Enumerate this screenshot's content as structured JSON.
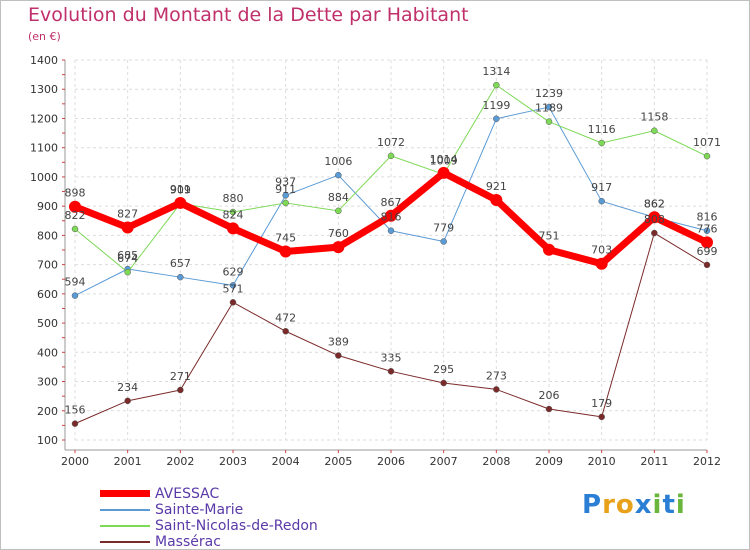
{
  "header": {
    "title": "Evolution du Montant de la Dette par Habitant",
    "unit": "(en €)"
  },
  "logo": {
    "text": "Proxiti",
    "letters": [
      "P",
      "r",
      "o",
      "x",
      "i",
      "t",
      "i"
    ],
    "colors": [
      "#2a7fd4",
      "#e8a11a",
      "#e8a11a",
      "#2a7fd4",
      "#6ab53c",
      "#2a7fd4",
      "#6ab53c"
    ]
  },
  "chart_data": {
    "type": "line",
    "title": "Evolution du Montant de la Dette par Habitant",
    "ylabel": "(en €)",
    "xlabel": "",
    "ylim": [
      100,
      1400
    ],
    "yticks": [
      "100",
      "200",
      "300",
      "400",
      "500",
      "600",
      "700",
      "800",
      "900",
      "1000",
      "1100",
      "1200",
      "1300",
      "1400"
    ],
    "x": [
      "2000",
      "2001",
      "2002",
      "2003",
      "2004",
      "2005",
      "2006",
      "2007",
      "2008",
      "2009",
      "2010",
      "2011",
      "2012"
    ],
    "grid": true,
    "legend_position": "bottom-left",
    "series": [
      {
        "name": "AVESSAC",
        "color": "#ff0000",
        "width": 7,
        "values": [
          898,
          827,
          911,
          824,
          745,
          760,
          867,
          1014,
          921,
          751,
          703,
          862,
          776
        ],
        "labels": [
          "898",
          "827",
          "911",
          "824",
          "745",
          "760",
          "867",
          "1014",
          "921",
          "751",
          "703",
          "862",
          "776"
        ]
      },
      {
        "name": "Sainte-Marie",
        "color": "#5b9bd5",
        "width": 1,
        "values": [
          594,
          685,
          657,
          629,
          937,
          1006,
          816,
          779,
          1199,
          1239,
          917,
          862,
          816
        ],
        "labels": [
          "594",
          "685",
          "657",
          "629",
          "937",
          "1006",
          "816",
          "779",
          "1199",
          "1239",
          "917",
          "862",
          "816"
        ]
      },
      {
        "name": "Saint-Nicolas-de-Redon",
        "color": "#7ed957",
        "width": 1,
        "values": [
          822,
          674,
          909,
          880,
          911,
          884,
          1072,
          1009,
          1314,
          1189,
          1116,
          1158,
          1071
        ],
        "labels": [
          "822",
          "674",
          "909",
          "880",
          "911",
          "884",
          "1072",
          "1009",
          "1314",
          "1189",
          "1116",
          "1158",
          "1071"
        ]
      },
      {
        "name": "Massérac",
        "color": "#7b2a2a",
        "width": 1,
        "values": [
          156,
          234,
          271,
          571,
          472,
          389,
          335,
          295,
          273,
          206,
          179,
          808,
          699
        ],
        "labels": [
          "156",
          "234",
          "271",
          "571",
          "472",
          "389",
          "335",
          "295",
          "273",
          "206",
          "179",
          "808",
          "699"
        ]
      }
    ]
  }
}
